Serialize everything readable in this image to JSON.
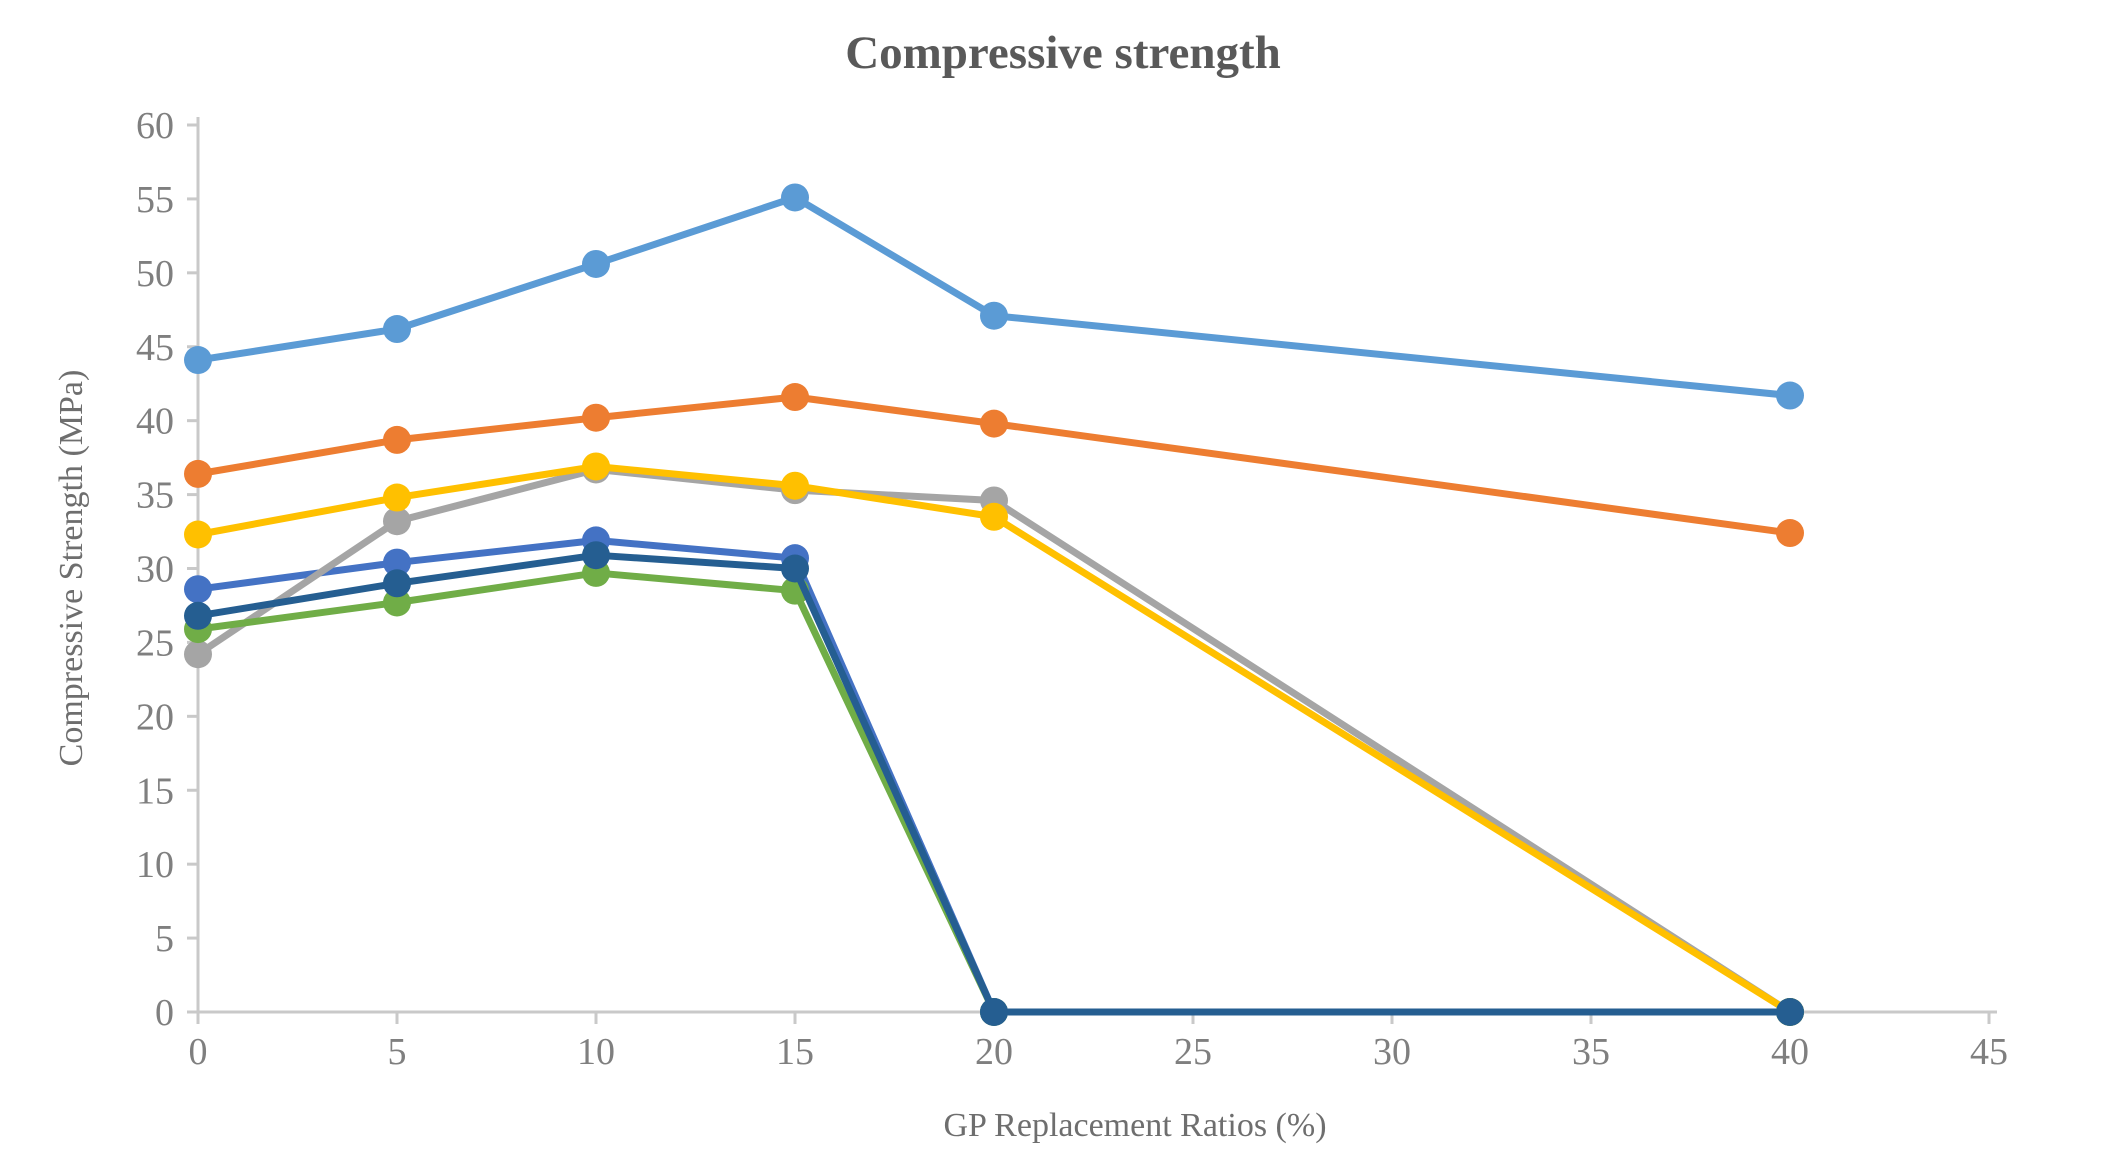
{
  "title": "Compressive strength",
  "chart_data": {
    "type": "line",
    "title": "Compressive strength",
    "xlabel": "GP Replacement Ratios (%)",
    "ylabel": "Compressive Strength (MPa)",
    "x": [
      0,
      5,
      10,
      15,
      20,
      40
    ],
    "xlim": [
      0,
      45
    ],
    "ylim": [
      0,
      60
    ],
    "x_ticks": [
      0,
      5,
      10,
      15,
      20,
      25,
      30,
      35,
      40,
      45
    ],
    "y_ticks": [
      0,
      5,
      10,
      15,
      20,
      25,
      30,
      35,
      40,
      45,
      50,
      55,
      60
    ],
    "grid": false,
    "legend": "none",
    "marker": "circle",
    "series": [
      {
        "name": "royal-blue-series",
        "color": "#4472C4",
        "values": [
          28.6,
          30.4,
          31.9,
          30.7,
          0,
          0
        ]
      },
      {
        "name": "orange-series",
        "color": "#ED7D31",
        "values": [
          36.4,
          38.7,
          40.2,
          41.6,
          39.8,
          32.4
        ]
      },
      {
        "name": "gray-series",
        "color": "#A5A5A5",
        "values": [
          24.2,
          33.2,
          36.7,
          35.3,
          34.6,
          0
        ]
      },
      {
        "name": "yellow-series",
        "color": "#FFC000",
        "values": [
          32.3,
          34.8,
          36.9,
          35.6,
          33.5,
          0
        ]
      },
      {
        "name": "light-blue-series",
        "color": "#5B9BD5",
        "values": [
          44.1,
          46.2,
          50.6,
          55.1,
          47.1,
          41.7
        ]
      },
      {
        "name": "green-series",
        "color": "#70AD47",
        "values": [
          25.9,
          27.7,
          29.7,
          28.5,
          0,
          0
        ]
      },
      {
        "name": "dark-blue-series",
        "color": "#255E91",
        "values": [
          26.8,
          29.0,
          30.9,
          30.0,
          0,
          0
        ]
      }
    ]
  },
  "style": {
    "title_color": "#595959",
    "tick_label_color": "#7f7f7f",
    "axis_line_color": "#c9c9c9",
    "background": "#ffffff"
  }
}
